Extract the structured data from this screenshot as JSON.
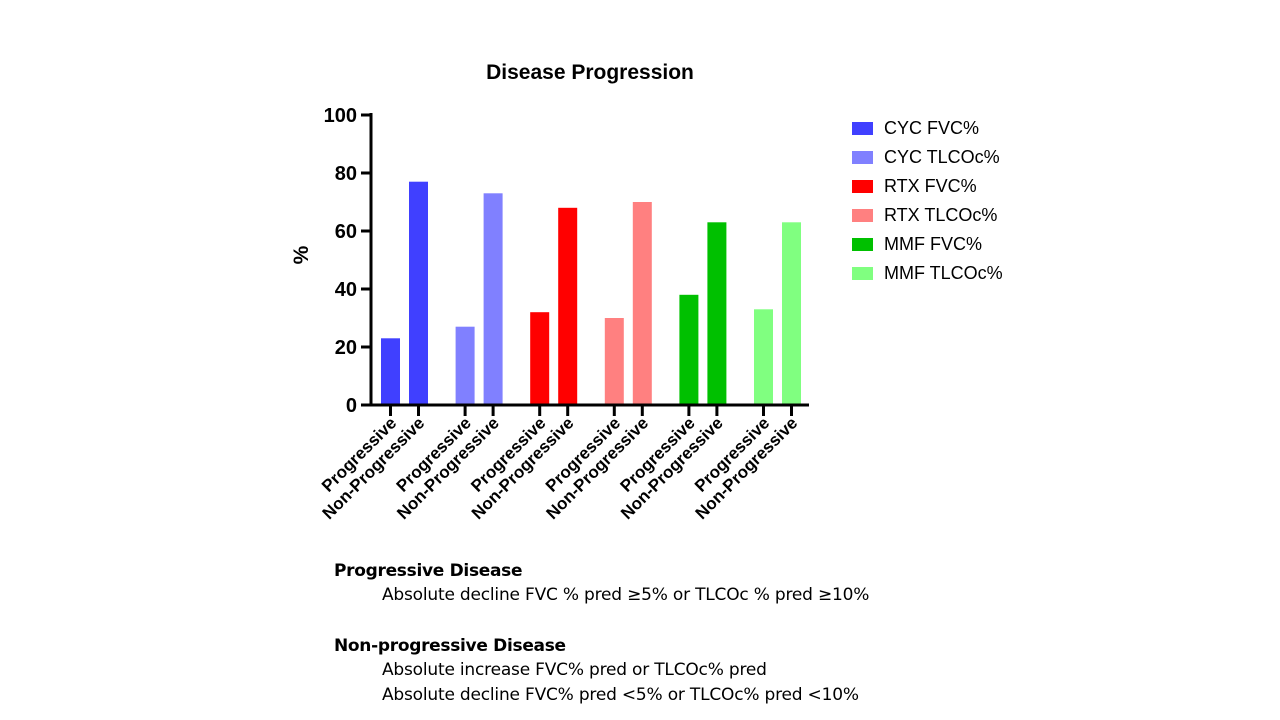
{
  "chart_data": {
    "type": "bar",
    "title": "Disease Progression",
    "xlabel": "",
    "ylabel": "%",
    "ylim": [
      0,
      100
    ],
    "yticks": [
      0,
      20,
      40,
      60,
      80,
      100
    ],
    "grid": false,
    "legend_position": "right",
    "categories": [
      "Progressive",
      "Non-Progressive",
      "Progressive",
      "Non-Progressive",
      "Progressive",
      "Non-Progressive",
      "Progressive",
      "Non-Progressive",
      "Progressive",
      "Non-Progressive",
      "Progressive",
      "Non-Progressive"
    ],
    "series": [
      {
        "name": "CYC FVC%",
        "color": "#4040ff",
        "values": {
          "Progressive": 23,
          "Non-Progressive": 77
        }
      },
      {
        "name": "CYC TLCOc%",
        "color": "#8080ff",
        "values": {
          "Progressive": 27,
          "Non-Progressive": 73
        }
      },
      {
        "name": "RTX FVC%",
        "color": "#ff0000",
        "values": {
          "Progressive": 32,
          "Non-Progressive": 68
        }
      },
      {
        "name": "RTX TLCOc%",
        "color": "#ff8080",
        "values": {
          "Progressive": 30,
          "Non-Progressive": 70
        }
      },
      {
        "name": "MMF FVC%",
        "color": "#00c000",
        "values": {
          "Progressive": 38,
          "Non-Progressive": 63
        }
      },
      {
        "name": "MMF TLCOc%",
        "color": "#80ff80",
        "values": {
          "Progressive": 33,
          "Non-Progressive": 63
        }
      }
    ]
  },
  "notes": {
    "progressive": {
      "heading": "Progressive  Disease",
      "lines": [
        "Absolute decline FVC % pred ≥5% or TLCOc % pred ≥10%"
      ]
    },
    "non_progressive": {
      "heading": "Non-progressive  Disease",
      "lines": [
        "Absolute increase FVC% pred or TLCOc% pred",
        "Absolute decline FVC% pred <5% or TLCOc% pred <10%"
      ]
    }
  }
}
